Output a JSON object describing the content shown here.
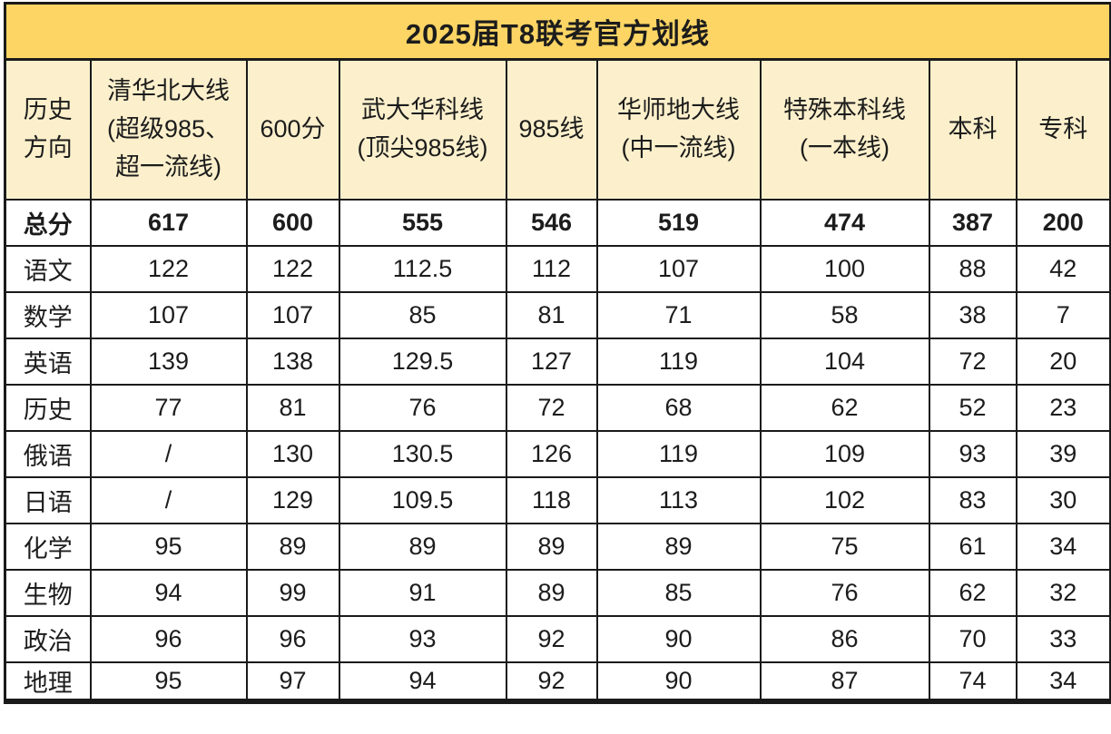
{
  "title": "2025届T8联考官方划线",
  "table": {
    "corner_label": "历史\n方向",
    "headers": [
      "清华北大线\n(超级985、\n超一流线)",
      "600分",
      "武大华科线\n(顶尖985线)",
      "985线",
      "华师地大线\n(中一流线)",
      "特殊本科线\n(一本线)",
      "本科",
      "专科"
    ],
    "rows": [
      {
        "label": "总分",
        "bold": true,
        "values": [
          "617",
          "600",
          "555",
          "546",
          "519",
          "474",
          "387",
          "200"
        ]
      },
      {
        "label": "语文",
        "bold": false,
        "values": [
          "122",
          "122",
          "112.5",
          "112",
          "107",
          "100",
          "88",
          "42"
        ]
      },
      {
        "label": "数学",
        "bold": false,
        "values": [
          "107",
          "107",
          "85",
          "81",
          "71",
          "58",
          "38",
          "7"
        ]
      },
      {
        "label": "英语",
        "bold": false,
        "values": [
          "139",
          "138",
          "129.5",
          "127",
          "119",
          "104",
          "72",
          "20"
        ]
      },
      {
        "label": "历史",
        "bold": false,
        "values": [
          "77",
          "81",
          "76",
          "72",
          "68",
          "62",
          "52",
          "23"
        ]
      },
      {
        "label": "俄语",
        "bold": false,
        "values": [
          "/",
          "130",
          "130.5",
          "126",
          "119",
          "109",
          "93",
          "39"
        ]
      },
      {
        "label": "日语",
        "bold": false,
        "values": [
          "/",
          "129",
          "109.5",
          "118",
          "113",
          "102",
          "83",
          "30"
        ]
      },
      {
        "label": "化学",
        "bold": false,
        "values": [
          "95",
          "89",
          "89",
          "89",
          "89",
          "75",
          "61",
          "34"
        ]
      },
      {
        "label": "生物",
        "bold": false,
        "values": [
          "94",
          "99",
          "91",
          "89",
          "85",
          "76",
          "62",
          "32"
        ]
      },
      {
        "label": "政治",
        "bold": false,
        "values": [
          "96",
          "96",
          "93",
          "92",
          "90",
          "86",
          "70",
          "33"
        ]
      },
      {
        "label": "地理",
        "bold": false,
        "values": [
          "95",
          "97",
          "94",
          "92",
          "90",
          "87",
          "74",
          "34"
        ]
      }
    ]
  },
  "chart_data": {
    "type": "table",
    "title": "2025届T8联考官方划线",
    "columns": [
      "历史方向",
      "清华北大线(超级985、超一流线)",
      "600分",
      "武大华科线(顶尖985线)",
      "985线",
      "华师地大线(中一流线)",
      "特殊本科线(一本线)",
      "本科",
      "专科"
    ],
    "rows": [
      [
        "总分",
        617,
        600,
        555,
        546,
        519,
        474,
        387,
        200
      ],
      [
        "语文",
        122,
        122,
        112.5,
        112,
        107,
        100,
        88,
        42
      ],
      [
        "数学",
        107,
        107,
        85,
        81,
        71,
        58,
        38,
        7
      ],
      [
        "英语",
        139,
        138,
        129.5,
        127,
        119,
        104,
        72,
        20
      ],
      [
        "历史",
        77,
        81,
        76,
        72,
        68,
        62,
        52,
        23
      ],
      [
        "俄语",
        "/",
        130,
        130.5,
        126,
        119,
        109,
        93,
        39
      ],
      [
        "日语",
        "/",
        129,
        109.5,
        118,
        113,
        102,
        83,
        30
      ],
      [
        "化学",
        95,
        89,
        89,
        89,
        89,
        75,
        61,
        34
      ],
      [
        "生物",
        94,
        99,
        91,
        89,
        85,
        76,
        62,
        32
      ],
      [
        "政治",
        96,
        96,
        93,
        92,
        90,
        86,
        70,
        33
      ],
      [
        "地理",
        95,
        97,
        94,
        92,
        90,
        87,
        74,
        34
      ]
    ],
    "layout": {
      "title_position": "top",
      "grid": true,
      "bold_rows": [
        "总分"
      ]
    }
  },
  "colors": {
    "title_bg": "#FCD564",
    "header_bg": "#FCF0CC",
    "border": "#1A1A1A",
    "cell_bg": "#FFFFFF",
    "text": "#1C1C1C"
  }
}
